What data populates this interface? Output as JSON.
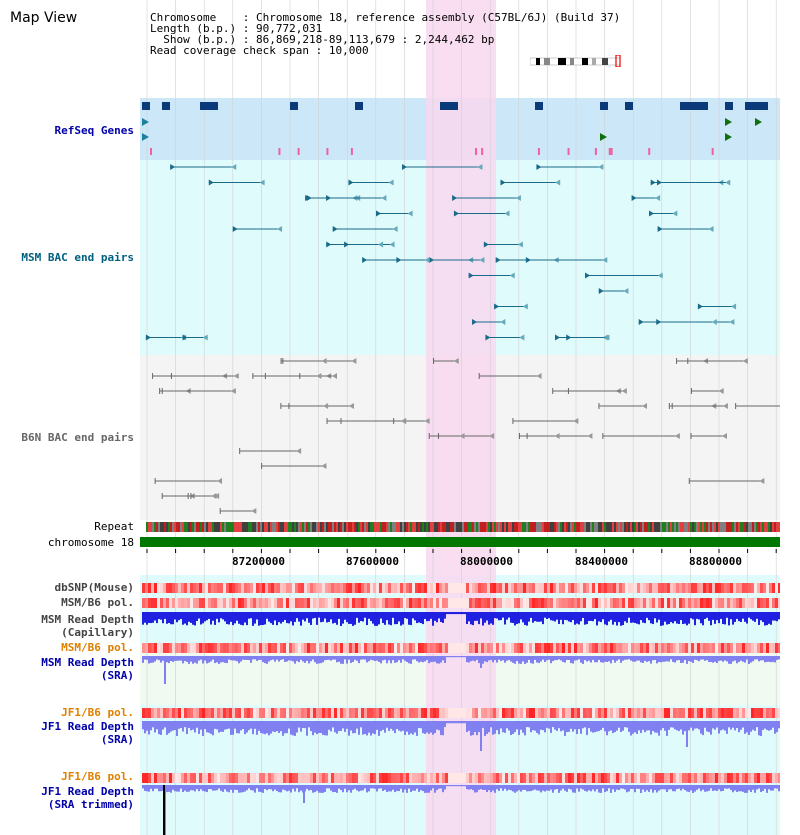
{
  "view_title": "Map View",
  "info": {
    "chromosome_label": "Chromosome",
    "chromosome_value": "Chromosome 18, reference assembly (C57BL/6J) (Build 37)",
    "length_label": "Length (b.p.)",
    "length_value": "90,772,031",
    "show_label": "Show (b.p.)",
    "show_value": "86,869,218-89,113,679 : 2,244,462 bp",
    "coverage_label": "Read coverage check span",
    "coverage_value": "10,000"
  },
  "tracks": {
    "refseq": "RefSeq Genes",
    "msm_bac": "MSM BAC end pairs",
    "b6n_bac": "B6N BAC end pairs",
    "repeat": "Repeat",
    "chromosome": "chromosome 18",
    "dbsnp": "dbSNP(Mouse)",
    "msm_pol": "MSM/B6 pol.",
    "msm_depth_cap": "MSM Read Depth\n(Capillary)",
    "msm_pol_sra": "MSM/B6 pol.",
    "msm_depth_sra": "MSM Read Depth\n(SRA)",
    "jf1_pol": "JF1/B6 pol.",
    "jf1_depth_sra": "JF1 Read Depth\n(SRA)",
    "jf1_pol_trim": "JF1/B6 pol.",
    "jf1_depth_trim": "JF1 Read Depth\n(SRA trimmed)"
  },
  "axis": {
    "ticks": [
      "87200000",
      "87600000",
      "88000000",
      "88400000",
      "88800000"
    ]
  },
  "colors": {
    "highlight": "#f8d8f0",
    "refseq_bg": "#cce8f8",
    "cyan_bg": "#e0fbfb",
    "gray_bg": "#f4f4f4",
    "msm_color": "#1a6a8a",
    "b6n_color": "#666666",
    "chromosome_bar": "#007700",
    "snp_red": "#e83030",
    "depth_blue": "#2020e0",
    "depth_light": "#8080f0",
    "label_blue": "#0000aa",
    "label_teal": "#006080",
    "label_orange": "#e08000"
  }
}
